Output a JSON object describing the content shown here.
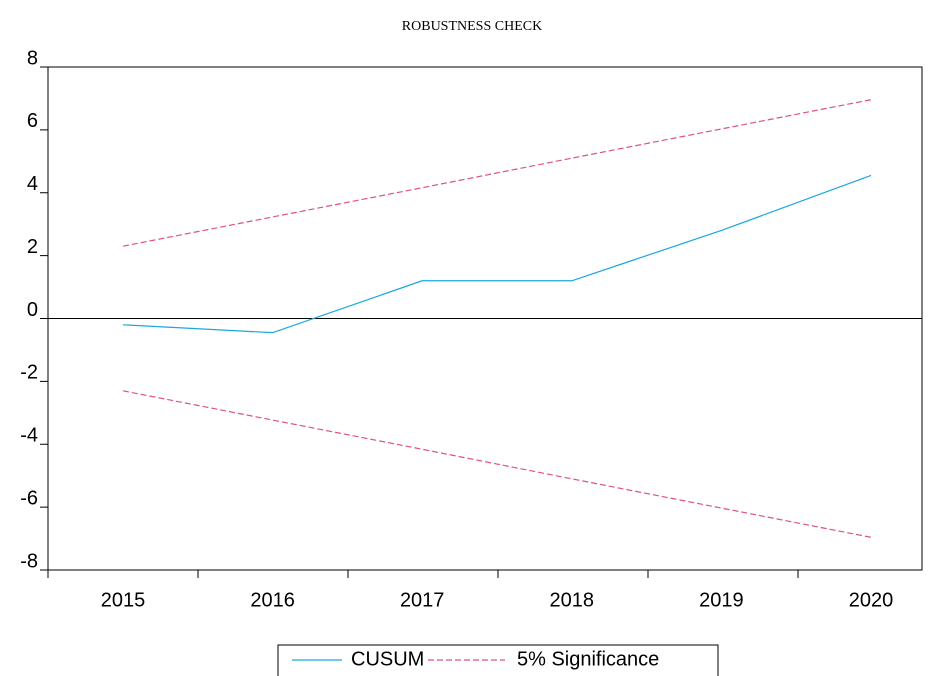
{
  "chart_data": {
    "type": "line",
    "title": "ROBUSTNESS CHECK",
    "categories": [
      "2015",
      "2016",
      "2017",
      "2018",
      "2019",
      "2020"
    ],
    "series": [
      {
        "name": "CUSUM",
        "color": "#1aa7e0",
        "values": [
          -0.2,
          -0.45,
          1.2,
          1.2,
          2.8,
          4.55
        ]
      }
    ],
    "bounds": {
      "name": "5% Significance",
      "color": "#e0508c",
      "upper": [
        2.3,
        3.23,
        4.16,
        5.1,
        6.03,
        6.96
      ],
      "lower": [
        -2.3,
        -3.23,
        -4.16,
        -5.1,
        -6.03,
        -6.96
      ]
    },
    "ylim": [
      -8,
      8
    ],
    "yticks": [
      -8,
      -6,
      -4,
      -2,
      0,
      2,
      4,
      6,
      8
    ],
    "zero_line": true
  }
}
